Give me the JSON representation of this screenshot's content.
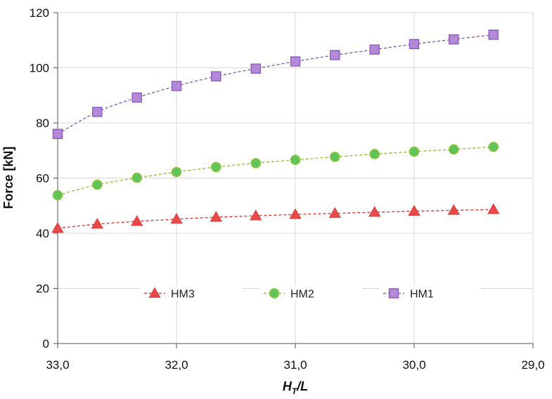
{
  "chart_data": {
    "type": "line",
    "title": "",
    "xlabel_main": "H",
    "xlabel_sub": "T",
    "xlabel_tail": "/L",
    "ylabel": "Force [kN]",
    "xlim": [
      33.0,
      29.0
    ],
    "ylim": [
      0,
      120
    ],
    "x_reversed": true,
    "xticks": [
      33.0,
      32.0,
      31.0,
      30.0,
      29.0
    ],
    "xtick_labels": [
      "33,0",
      "32,0",
      "31,0",
      "30,0",
      "29,0"
    ],
    "yticks": [
      0,
      20,
      40,
      60,
      80,
      100,
      120
    ],
    "ytick_labels": [
      "0",
      "20",
      "40",
      "60",
      "80",
      "100",
      "120"
    ],
    "grid": true,
    "legend_position": "lower-center",
    "x": [
      33.0,
      32.667,
      32.333,
      32.0,
      31.667,
      31.333,
      31.0,
      30.667,
      30.333,
      30.0,
      29.667,
      29.333
    ],
    "series": [
      {
        "name": "HM3",
        "marker": "triangle",
        "color": "#e03a3a",
        "fill": "#e84a4a",
        "values": [
          41.8,
          43.3,
          44.3,
          45.1,
          45.8,
          46.3,
          46.8,
          47.2,
          47.6,
          48.0,
          48.3,
          48.6
        ]
      },
      {
        "name": "HM2",
        "marker": "circle",
        "color": "#8fc43c",
        "fill": "#5fc45a",
        "values": [
          53.8,
          57.6,
          60.1,
          62.2,
          64.0,
          65.4,
          66.6,
          67.7,
          68.7,
          69.6,
          70.4,
          71.3
        ]
      },
      {
        "name": "HM1",
        "marker": "square",
        "color": "#8a5bbf",
        "fill": "#b48ad8",
        "values": [
          76.0,
          84.0,
          89.2,
          93.4,
          96.9,
          99.7,
          102.3,
          104.6,
          106.6,
          108.6,
          110.3,
          112.0
        ]
      }
    ]
  }
}
